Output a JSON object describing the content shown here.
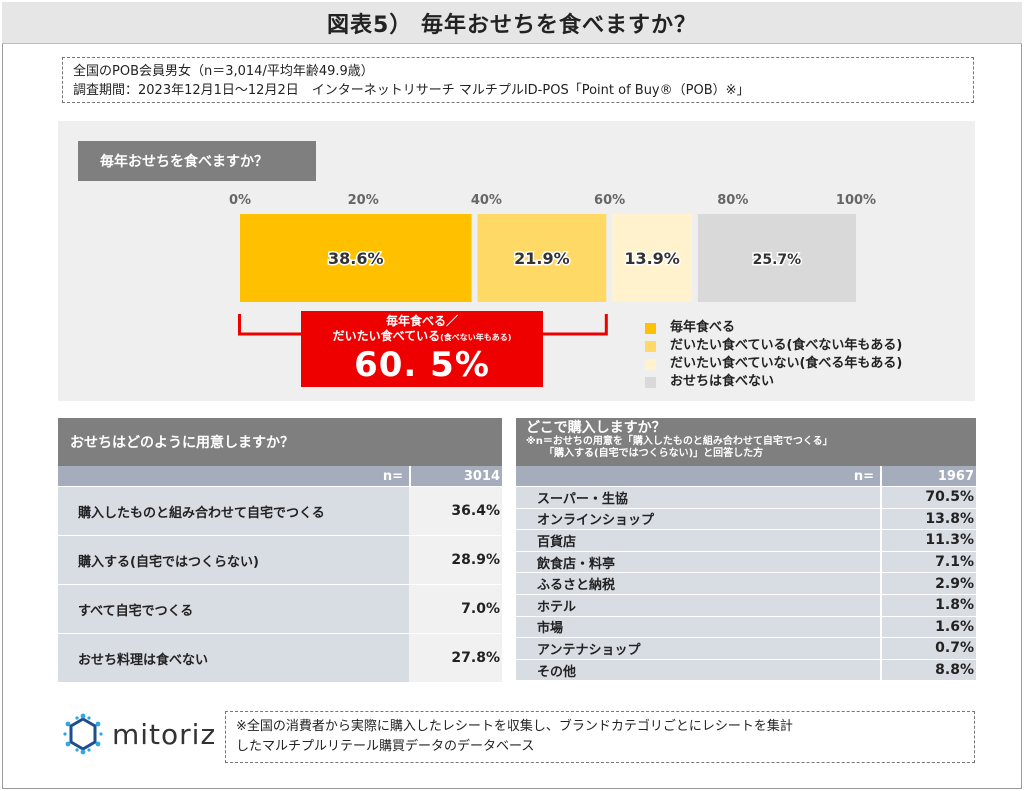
{
  "title": "図表5） 毎年おせちを食べますか？",
  "info": {
    "line1": "全国のPOB会員男女（n＝3,014/平均年齢49.9歳）",
    "line2": "調査期間：2023年12月1日～12月2日　インターネットリサーチ マルチプルID-POS「Point of Buy®（POB）※」"
  },
  "chart_data": {
    "type": "bar",
    "orientation": "horizontal-stacked-100",
    "title": "毎年おせちを食べますか？",
    "axis_ticks": [
      "0%",
      "20%",
      "40%",
      "60%",
      "80%",
      "100%"
    ],
    "xlim": [
      0,
      100
    ],
    "series": [
      {
        "name": "毎年食べる",
        "value": 38.6,
        "label": "38.6%",
        "color": "#ffc000"
      },
      {
        "name": "だいたい食べている(食べない年もある)",
        "value": 21.9,
        "label": "21.9%",
        "color": "#ffd966"
      },
      {
        "name": "だいたい食べていない(食べる年もある)",
        "value": 13.9,
        "label": "13.9%",
        "color": "#fff2cc"
      },
      {
        "name": "おせちは食べない",
        "value": 25.7,
        "label": "25.7%",
        "color": "#d9d9d9"
      }
    ],
    "callout": {
      "line1": "毎年食べる／",
      "line2": "だいたい食べている",
      "line2_small": "(食べない年もある)",
      "value": "60. 5%"
    }
  },
  "left_table": {
    "header": "おせちはどのように用意しますか？",
    "n_label": "n=",
    "n_value": "3014",
    "rows": [
      {
        "label": "購入したものと組み合わせて自宅でつくる",
        "value": "36.4%"
      },
      {
        "label": "購入する(自宅ではつくらない)",
        "value": "28.9%"
      },
      {
        "label": "すべて自宅でつくる",
        "value": "7.0%"
      },
      {
        "label": "おせち料理は食べない",
        "value": "27.8%"
      }
    ]
  },
  "right_table": {
    "header": "どこで購入しますか？",
    "note1": "※n＝おせちの用意を「購入したものと組み合わせて自宅でつくる」",
    "note2": "「購入する(自宅ではつくらない)」と回答した方",
    "n_label": "n=",
    "n_value": "1967",
    "rows": [
      {
        "label": "スーパー・生協",
        "value": "70.5%"
      },
      {
        "label": "オンラインショップ",
        "value": "13.8%"
      },
      {
        "label": "百貨店",
        "value": "11.3%"
      },
      {
        "label": "飲食店・料亭",
        "value": "7.1%"
      },
      {
        "label": "ふるさと納税",
        "value": "2.9%"
      },
      {
        "label": "ホテル",
        "value": "1.8%"
      },
      {
        "label": "市場",
        "value": "1.6%"
      },
      {
        "label": "アンテナショップ",
        "value": "0.7%"
      },
      {
        "label": "その他",
        "value": "8.8%"
      }
    ]
  },
  "logo": {
    "text": "mitoriz",
    "icon": "mitoriz-logo-icon",
    "color": "#1e4e8c"
  },
  "footnote": {
    "line1": "※全国の消費者から実際に購入したレシートを収集し、ブランドカテゴリごとにレシートを集計",
    "line2": "したマルチプルリテール購買データのデータベース"
  }
}
